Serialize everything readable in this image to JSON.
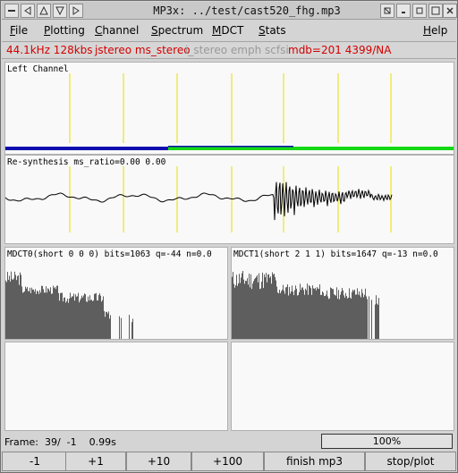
{
  "window": {
    "title": "MP3x: ../test/cast520_fhg.mp3"
  },
  "menu": {
    "items": [
      {
        "label": "File",
        "underline": "F",
        "rest": "ile"
      },
      {
        "label": "Plotting",
        "underline": "P",
        "rest": "lotting"
      },
      {
        "label": "Channel",
        "underline": "C",
        "rest": "hannel"
      },
      {
        "label": "Spectrum",
        "underline": "S",
        "rest": "pectrum"
      },
      {
        "label": "MDCT",
        "underline": "M",
        "rest": "DCT"
      },
      {
        "label": "Stats",
        "underline": "S",
        "rest": "tats"
      },
      {
        "label": "Help",
        "underline": "H",
        "rest": "elp"
      }
    ]
  },
  "info": {
    "freq_bitrate": "44.1kHz 128kbs",
    "mode": "jstereo ms_stereo",
    "flags_off": "i_stereo emph scfsi",
    "mdb": "mdb=201 4399/NA"
  },
  "panels": {
    "left_channel": "Left Channel",
    "resynth": "Re-synthesis  ms_ratio=0.00  0.00",
    "mdct0": "MDCT0(short 0 0 0) bits=1063 q=-44 n=0.0",
    "mdct1": "MDCT1(short 2 1 1) bits=1647 q=-13 n=0.0"
  },
  "status": {
    "frame": "Frame:  39/  -1    0.99s",
    "progress_text": "100%",
    "progress_value": 1.0
  },
  "buttons": [
    "-1",
    "+1",
    "+10",
    "+100",
    "finish mp3",
    "stop/plot"
  ],
  "colors": {
    "granule_lines": "#e8e000",
    "bar_blue": "#1010b0",
    "bar_green": "#14d814",
    "waveform": "#000000",
    "spectrum": "#5e5e5e"
  }
}
